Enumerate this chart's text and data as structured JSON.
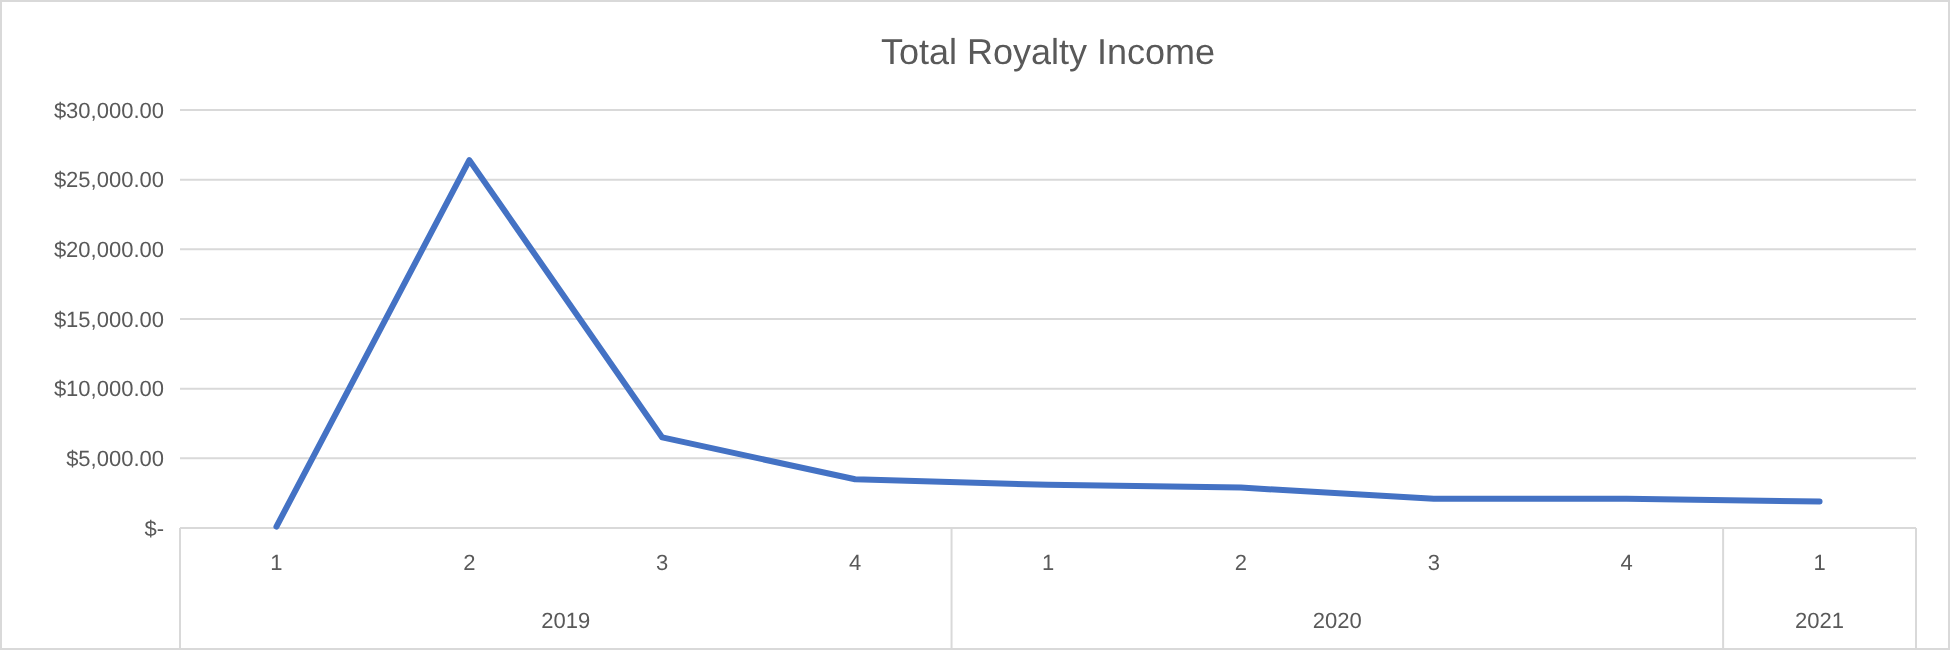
{
  "chart_data": {
    "type": "line",
    "title": "Total Royalty Income",
    "categories": [
      "1",
      "2",
      "3",
      "4",
      "1",
      "2",
      "3",
      "4",
      "1"
    ],
    "annotations": [
      "2019",
      "2020",
      "2021"
    ],
    "series": [
      {
        "color": "#4472c4",
        "values": [
          100,
          26400,
          6500,
          3500,
          3100,
          2900,
          2100,
          2100,
          1900
        ]
      }
    ],
    "ylim": [
      0,
      30000
    ],
    "yticks": [
      {
        "value": 0,
        "label": "$-"
      },
      {
        "value": 5000,
        "label": "$5,000.00"
      },
      {
        "value": 10000,
        "label": "$10,000.00"
      },
      {
        "value": 15000,
        "label": "$15,000.00"
      },
      {
        "value": 20000,
        "label": "$20,000.00"
      },
      {
        "value": 25000,
        "label": "$25,000.00"
      },
      {
        "value": 30000,
        "label": "$30,000.00"
      }
    ],
    "grid": "y",
    "marker": "none",
    "line_style": "solid"
  }
}
